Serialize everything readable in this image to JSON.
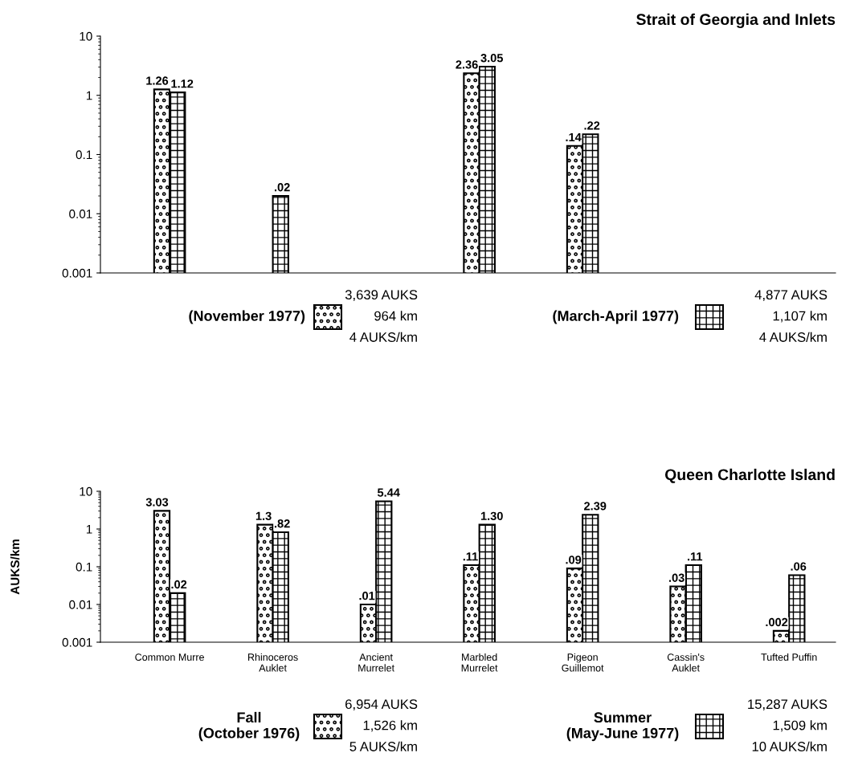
{
  "chart_data": [
    {
      "type": "bar",
      "title": "Strait of Georgia and Inlets",
      "categories": [
        null,
        null,
        null,
        null,
        null,
        null,
        null
      ],
      "tick_labels": "y",
      "series": [
        {
          "name": "(November 1977)",
          "color": "#000000",
          "values": [
            1.26,
            null,
            null,
            2.36,
            0.14,
            null,
            null
          ],
          "value_labels": [
            "1.26",
            null,
            null,
            "2.36",
            ".14",
            null,
            null
          ]
        },
        {
          "name": "(March-April 1977)",
          "color": "#000000",
          "values": [
            1.12,
            0.02,
            null,
            3.05,
            0.22,
            null,
            null
          ],
          "value_labels": [
            "1.12",
            ".02",
            null,
            "3.05",
            ".22",
            null,
            null
          ]
        }
      ],
      "log": true,
      "ylim": [
        0.001,
        10
      ],
      "yticks": [
        0.001,
        0.01,
        0.1,
        1,
        10
      ],
      "grid": false,
      "legend": "bottom",
      "annotations": [
        "3,639 AUKS\n964 km\n4 AUKS/km",
        "4,877 AUKS\n1,107 km\n4 AUKS/km"
      ]
    },
    {
      "type": "bar",
      "title": "Queen Charlotte Island",
      "ylabel": "AUKS/km",
      "categories": [
        "Common Murre",
        "Rhinoceros\nAuklet",
        "Ancient\nMurrelet",
        "Marbled\nMurrelet",
        "Pigeon\nGuillemot",
        "Cassin's\nAuklet",
        "Tufted Puffin"
      ],
      "series": [
        {
          "name": "Fall\n(October 1976)",
          "color": "#000000",
          "values": [
            3.03,
            1.3,
            0.01,
            0.11,
            0.09,
            0.03,
            0.002
          ],
          "value_labels": [
            "3.03",
            "1.3",
            ".01",
            ".11",
            ".09",
            ".03",
            ".002"
          ]
        },
        {
          "name": "Summer\n(May-June 1977)",
          "color": "#000000",
          "values": [
            0.02,
            0.82,
            5.44,
            1.3,
            2.39,
            0.11,
            0.06
          ],
          "value_labels": [
            ".02",
            ".82",
            "5.44",
            "1.30",
            "2.39",
            ".11",
            ".06"
          ]
        }
      ],
      "log": true,
      "ylim": [
        0.001,
        10
      ],
      "yticks": [
        0.001,
        0.01,
        0.1,
        1,
        10
      ],
      "grid": false,
      "legend": "bottom",
      "annotations": [
        "6,954 AUKS\n1,526 km\n5 AUKS/km",
        "15,287 AUKS\n1,509 km\n10 AUKS/km"
      ]
    }
  ]
}
